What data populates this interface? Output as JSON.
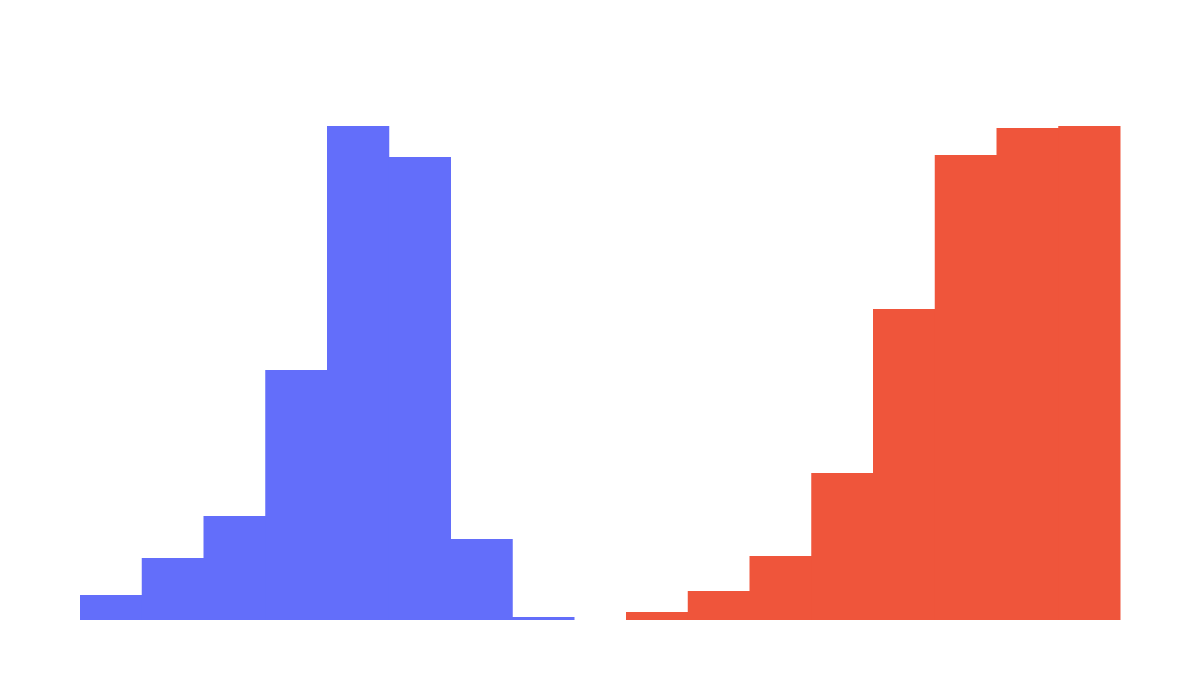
{
  "chart_data": [
    {
      "type": "bar",
      "histogram": true,
      "color": "#636efa",
      "values": [
        25,
        62,
        104,
        250,
        494,
        463,
        81,
        3
      ],
      "ylim": [
        0,
        494
      ],
      "grid": false,
      "legend": "none"
    },
    {
      "type": "bar",
      "histogram": true,
      "color": "#ef553b",
      "values": [
        8,
        29,
        64,
        147,
        311,
        465,
        492,
        494
      ],
      "ylim": [
        0,
        494
      ],
      "grid": false,
      "legend": "none"
    }
  ]
}
